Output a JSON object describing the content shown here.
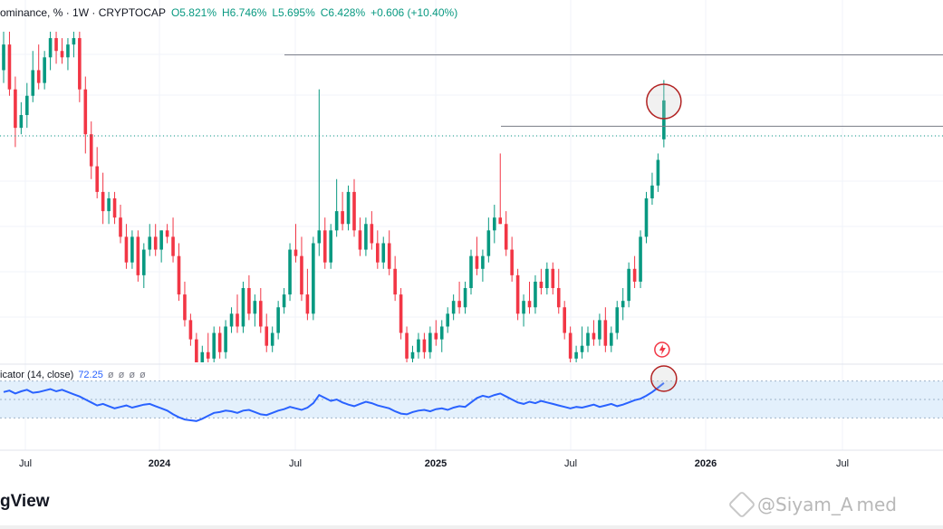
{
  "header": {
    "title_fragment": "ominance, % · 1W · CRYPTOCAP",
    "open": "O5.821%",
    "high": "H6.746%",
    "low": "L5.695%",
    "close": "C6.428%",
    "change": "+0.606 (+10.40%)"
  },
  "indicator": {
    "label": "icator (14, close)",
    "value": "72.25",
    "placeholders": [
      "ø",
      "ø",
      "ø",
      "ø"
    ]
  },
  "footer": {
    "logo_fragment": "gView",
    "watermark": "@Siyam_A med"
  },
  "colors": {
    "up": "#089981",
    "down": "#f23645",
    "indicator_line": "#2962ff",
    "indicator_band": "#e3f0fc",
    "annotation_circle": "#b22222",
    "horizontal_level": "#787b86"
  },
  "chart_data": {
    "type": "candlestick",
    "timeframe": "1W",
    "x_ticks": [
      "Jul",
      "2024",
      "Jul",
      "2025",
      "Jul",
      "2026",
      "Jul"
    ],
    "y_range": [
      2.2,
      7.5
    ],
    "indicator_range": [
      0,
      100
    ],
    "indicator_band": [
      30,
      70
    ],
    "last_ohlc": {
      "open": 5.821,
      "high": 6.746,
      "low": 5.695,
      "close": 6.428
    },
    "candles": [
      [
        6.9,
        7.5,
        6.7,
        7.3
      ],
      [
        7.3,
        7.5,
        6.5,
        6.6
      ],
      [
        6.6,
        6.8,
        5.7,
        6.0
      ],
      [
        6.0,
        6.4,
        5.9,
        6.2
      ],
      [
        6.2,
        6.7,
        6.0,
        6.5
      ],
      [
        6.5,
        7.2,
        6.4,
        6.9
      ],
      [
        6.9,
        7.3,
        6.6,
        6.7
      ],
      [
        6.7,
        7.2,
        6.6,
        7.1
      ],
      [
        7.1,
        7.5,
        6.9,
        7.4
      ],
      [
        7.4,
        7.5,
        7.0,
        7.2
      ],
      [
        7.2,
        7.4,
        7.0,
        7.1
      ],
      [
        7.1,
        7.4,
        6.9,
        7.3
      ],
      [
        7.3,
        7.5,
        7.1,
        7.4
      ],
      [
        7.4,
        7.5,
        6.4,
        6.6
      ],
      [
        6.6,
        6.8,
        5.6,
        5.9
      ],
      [
        5.9,
        6.1,
        5.2,
        5.4
      ],
      [
        5.4,
        5.7,
        4.9,
        5.0
      ],
      [
        5.0,
        5.3,
        4.5,
        4.7
      ],
      [
        4.7,
        5.0,
        4.5,
        4.9
      ],
      [
        4.9,
        5.0,
        4.5,
        4.6
      ],
      [
        4.6,
        4.8,
        4.2,
        4.3
      ],
      [
        4.3,
        4.5,
        3.8,
        3.9
      ],
      [
        3.9,
        4.4,
        3.8,
        4.3
      ],
      [
        4.3,
        4.4,
        3.6,
        3.7
      ],
      [
        3.7,
        4.2,
        3.5,
        4.1
      ],
      [
        4.1,
        4.5,
        4.0,
        4.3
      ],
      [
        4.3,
        4.5,
        4.0,
        4.1
      ],
      [
        4.1,
        4.4,
        3.9,
        4.4
      ],
      [
        4.4,
        4.5,
        4.2,
        4.3
      ],
      [
        4.3,
        4.6,
        3.9,
        4.0
      ],
      [
        4.0,
        4.2,
        3.3,
        3.4
      ],
      [
        3.4,
        3.6,
        2.9,
        3.0
      ],
      [
        3.0,
        3.1,
        2.6,
        2.7
      ],
      [
        2.7,
        2.8,
        2.2,
        2.3
      ],
      [
        2.3,
        2.6,
        2.2,
        2.5
      ],
      [
        2.5,
        2.8,
        2.3,
        2.4
      ],
      [
        2.4,
        2.9,
        2.3,
        2.8
      ],
      [
        2.8,
        2.9,
        2.4,
        2.5
      ],
      [
        2.5,
        3.0,
        2.4,
        2.9
      ],
      [
        2.9,
        3.2,
        2.8,
        3.1
      ],
      [
        3.1,
        3.4,
        2.8,
        2.9
      ],
      [
        2.9,
        3.6,
        2.8,
        3.5
      ],
      [
        3.5,
        3.7,
        3.0,
        3.1
      ],
      [
        3.1,
        3.4,
        2.9,
        3.3
      ],
      [
        3.3,
        3.5,
        2.8,
        2.9
      ],
      [
        2.9,
        3.1,
        2.5,
        2.6
      ],
      [
        2.6,
        2.9,
        2.5,
        2.8
      ],
      [
        2.8,
        3.3,
        2.7,
        3.2
      ],
      [
        3.2,
        3.5,
        3.1,
        3.4
      ],
      [
        3.4,
        4.2,
        3.3,
        4.1
      ],
      [
        4.1,
        4.5,
        3.9,
        4.0
      ],
      [
        4.0,
        4.3,
        3.3,
        3.4
      ],
      [
        3.4,
        3.8,
        3.0,
        3.1
      ],
      [
        3.1,
        4.3,
        3.0,
        4.2
      ],
      [
        4.2,
        6.6,
        4.0,
        4.4
      ],
      [
        4.4,
        4.6,
        3.8,
        3.9
      ],
      [
        3.9,
        4.5,
        3.8,
        4.4
      ],
      [
        4.4,
        5.2,
        4.3,
        4.7
      ],
      [
        4.7,
        5.0,
        4.4,
        4.5
      ],
      [
        4.5,
        5.1,
        4.4,
        5.0
      ],
      [
        5.0,
        5.2,
        4.3,
        4.4
      ],
      [
        4.4,
        4.6,
        4.0,
        4.1
      ],
      [
        4.1,
        4.6,
        4.0,
        4.5
      ],
      [
        4.5,
        4.7,
        4.1,
        4.2
      ],
      [
        4.2,
        4.4,
        3.8,
        3.9
      ],
      [
        3.9,
        4.3,
        3.8,
        4.2
      ],
      [
        4.2,
        4.4,
        3.7,
        3.8
      ],
      [
        3.8,
        4.0,
        3.3,
        3.4
      ],
      [
        3.4,
        3.5,
        2.7,
        2.8
      ],
      [
        2.8,
        2.9,
        2.3,
        2.4
      ],
      [
        2.4,
        2.6,
        2.3,
        2.5
      ],
      [
        2.5,
        2.8,
        2.4,
        2.7
      ],
      [
        2.7,
        2.8,
        2.4,
        2.5
      ],
      [
        2.5,
        2.9,
        2.4,
        2.8
      ],
      [
        2.8,
        3.0,
        2.6,
        2.7
      ],
      [
        2.7,
        3.0,
        2.5,
        2.9
      ],
      [
        2.9,
        3.2,
        2.8,
        3.1
      ],
      [
        3.1,
        3.4,
        3.0,
        3.3
      ],
      [
        3.3,
        3.6,
        3.1,
        3.2
      ],
      [
        3.2,
        3.6,
        3.1,
        3.5
      ],
      [
        3.5,
        4.1,
        3.4,
        4.0
      ],
      [
        4.0,
        4.3,
        3.7,
        3.8
      ],
      [
        3.8,
        4.1,
        3.6,
        4.0
      ],
      [
        4.0,
        4.6,
        3.9,
        4.4
      ],
      [
        4.4,
        4.8,
        4.2,
        4.6
      ],
      [
        4.6,
        5.6,
        4.5,
        4.5
      ],
      [
        4.5,
        4.7,
        4.0,
        4.1
      ],
      [
        4.1,
        4.3,
        3.6,
        3.7
      ],
      [
        3.7,
        3.8,
        3.0,
        3.1
      ],
      [
        3.1,
        3.4,
        2.9,
        3.3
      ],
      [
        3.3,
        3.6,
        3.1,
        3.2
      ],
      [
        3.2,
        3.7,
        3.1,
        3.6
      ],
      [
        3.6,
        3.8,
        3.4,
        3.5
      ],
      [
        3.5,
        3.9,
        3.4,
        3.8
      ],
      [
        3.8,
        3.9,
        3.4,
        3.5
      ],
      [
        3.5,
        3.8,
        3.1,
        3.2
      ],
      [
        3.2,
        3.3,
        2.7,
        2.8
      ],
      [
        2.8,
        2.9,
        2.3,
        2.4
      ],
      [
        2.4,
        2.6,
        2.3,
        2.5
      ],
      [
        2.5,
        2.9,
        2.4,
        2.6
      ],
      [
        2.6,
        2.9,
        2.5,
        2.8
      ],
      [
        2.8,
        3.0,
        2.6,
        2.7
      ],
      [
        2.7,
        3.1,
        2.6,
        3.0
      ],
      [
        3.0,
        3.2,
        2.5,
        2.6
      ],
      [
        2.6,
        2.9,
        2.5,
        2.8
      ],
      [
        2.8,
        3.3,
        2.7,
        3.2
      ],
      [
        3.2,
        3.5,
        3.0,
        3.3
      ],
      [
        3.3,
        3.9,
        3.2,
        3.8
      ],
      [
        3.8,
        4.0,
        3.5,
        3.6
      ],
      [
        3.6,
        4.4,
        3.5,
        4.3
      ],
      [
        4.3,
        5.0,
        4.2,
        4.9
      ],
      [
        4.9,
        5.3,
        4.8,
        5.1
      ],
      [
        5.1,
        5.6,
        5.0,
        5.5
      ],
      [
        5.821,
        6.746,
        5.695,
        6.428
      ]
    ],
    "indicator_values": [
      60,
      62,
      58,
      61,
      63,
      59,
      60,
      62,
      64,
      61,
      63,
      60,
      57,
      54,
      50,
      46,
      42,
      44,
      41,
      38,
      40,
      42,
      39,
      41,
      43,
      44,
      41,
      38,
      35,
      30,
      26,
      23,
      22,
      21,
      24,
      28,
      32,
      33,
      35,
      34,
      32,
      35,
      36,
      33,
      30,
      29,
      32,
      35,
      37,
      40,
      38,
      36,
      39,
      45,
      56,
      52,
      48,
      50,
      46,
      43,
      41,
      44,
      47,
      45,
      42,
      40,
      38,
      34,
      31,
      30,
      33,
      35,
      36,
      34,
      37,
      38,
      36,
      39,
      41,
      40,
      46,
      52,
      55,
      53,
      56,
      58,
      54,
      50,
      46,
      44,
      47,
      45,
      48,
      46,
      44,
      42,
      40,
      38,
      40,
      39,
      41,
      43,
      40,
      42,
      44,
      41,
      43,
      46,
      49,
      51,
      55,
      60,
      66,
      72.25
    ],
    "horizontal_levels": [
      6.6,
      5.6
    ],
    "highlights": [
      "last candle high",
      "last indicator value"
    ]
  }
}
